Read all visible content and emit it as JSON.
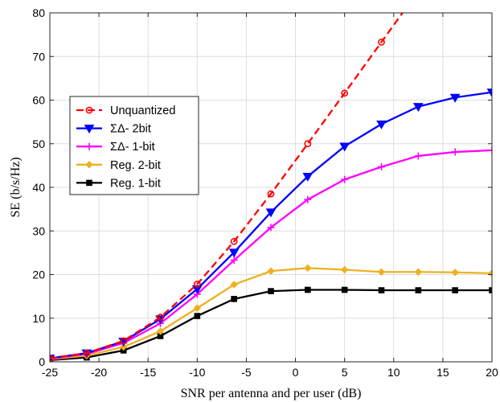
{
  "chart_data": {
    "type": "line",
    "title": "",
    "xlabel": "SNR per antenna and per user (dB)",
    "ylabel": "SE (b/s/Hz)",
    "xlim": [
      -25,
      20
    ],
    "ylim": [
      0,
      80
    ],
    "xticks": [
      -25,
      -20,
      -15,
      -10,
      -5,
      0,
      5,
      10,
      15,
      20
    ],
    "yticks": [
      0,
      10,
      20,
      30,
      40,
      50,
      60,
      70,
      80
    ],
    "grid": true,
    "legend_position": "left",
    "series": [
      {
        "name": "Unquantized",
        "color": "#ff0000",
        "line_style": "dashed",
        "marker": "circle",
        "x": [
          -25,
          -21.25,
          -17.5,
          -13.75,
          -10,
          -6.25,
          -2.5,
          1.25,
          5,
          8.75,
          12.5
        ],
        "y": [
          0.8,
          2.0,
          4.8,
          10.2,
          17.8,
          27.6,
          38.5,
          50.0,
          61.6,
          73.3,
          85.0
        ]
      },
      {
        "name": "ΣΔ- 2bit",
        "color": "#0000ff",
        "line_style": "solid",
        "marker": "triangle-down",
        "x": [
          -25,
          -21.25,
          -17.5,
          -13.75,
          -10,
          -6.25,
          -2.5,
          1.25,
          5,
          8.75,
          12.5,
          16.25,
          20
        ],
        "y": [
          0.8,
          2.0,
          4.7,
          9.8,
          16.7,
          25.1,
          34.3,
          42.5,
          49.4,
          54.5,
          58.5,
          60.6,
          61.8
        ]
      },
      {
        "name": "ΣΔ- 1-bit",
        "color": "#ff00ff",
        "line_style": "solid",
        "marker": "plus",
        "x": [
          -25,
          -21.25,
          -17.5,
          -13.75,
          -10,
          -6.25,
          -2.5,
          1.25,
          5,
          8.75,
          12.5,
          16.25,
          20
        ],
        "y": [
          0.7,
          1.8,
          4.3,
          8.8,
          15.5,
          23.3,
          30.8,
          37.2,
          41.8,
          44.7,
          47.2,
          48.1,
          48.5
        ]
      },
      {
        "name": "Reg. 2-bit",
        "color": "#edb120",
        "line_style": "solid",
        "marker": "diamond",
        "x": [
          -25,
          -21.25,
          -17.5,
          -13.75,
          -10,
          -6.25,
          -2.5,
          1.25,
          5,
          8.75,
          12.5,
          16.25,
          20
        ],
        "y": [
          0.6,
          1.4,
          3.4,
          7.0,
          12.3,
          17.7,
          20.8,
          21.5,
          21.1,
          20.6,
          20.6,
          20.5,
          20.3
        ]
      },
      {
        "name": "Reg. 1-bit",
        "color": "#000000",
        "line_style": "solid",
        "marker": "square",
        "x": [
          -25,
          -21.25,
          -17.5,
          -13.75,
          -10,
          -6.25,
          -2.5,
          1.25,
          5,
          8.75,
          12.5,
          16.25,
          20
        ],
        "y": [
          0.4,
          1.0,
          2.6,
          5.9,
          10.5,
          14.4,
          16.2,
          16.5,
          16.5,
          16.4,
          16.4,
          16.4,
          16.4
        ]
      }
    ]
  }
}
